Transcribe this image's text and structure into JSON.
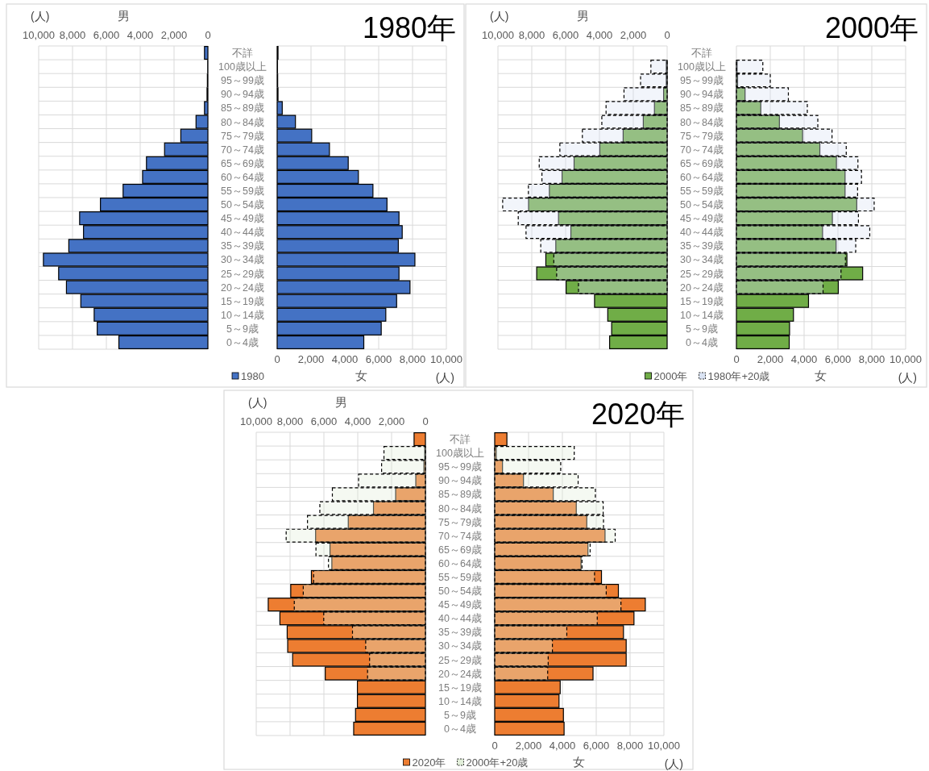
{
  "chart_data": [
    {
      "type": "bar",
      "orientation": "horizontal",
      "xlabel": "男",
      "annotations": [
        "(人)"
      ],
      "grid": true,
      "categories": [
        "不詳",
        "100歳以上",
        "95～99歳",
        "90～94歳",
        "85～89歳",
        "80～84歳",
        "75～79歳",
        "70～74歳",
        "65～69歳",
        "60～64歳",
        "55～59歳",
        "50～54歳",
        "45～49歳",
        "40～44歳",
        "35～39歳",
        "30～34歳",
        "25～29歳",
        "20～24歳",
        "15～19歳",
        "10～14歳",
        "5～9歳",
        "0～4歳"
      ],
      "xlim": [
        10000,
        0
      ],
      "xticks": [
        {
          "value": 10000,
          "label": "10,000"
        },
        {
          "value": 8000,
          "label": "8,000"
        },
        {
          "value": 6000,
          "label": "6,000"
        },
        {
          "value": 4000,
          "label": "4,000"
        },
        {
          "value": 2000,
          "label": "2,000"
        },
        {
          "value": 0,
          "label": "0"
        }
      ],
      "series": [
        {
          "color": "#4472c4",
          "values": [
            200,
            10,
            30,
            50,
            200,
            700,
            1600,
            2560,
            3630,
            3860,
            5010,
            6350,
            7580,
            7350,
            8220,
            9720,
            8820,
            8360,
            7510,
            6720,
            6540,
            5260
          ]
        }
      ]
    },
    {
      "type": "bar",
      "orientation": "horizontal",
      "title": "1980年",
      "xlabel": "女",
      "annotations": [
        "(人)"
      ],
      "grid": true,
      "legend": "bottom",
      "tick_labels": "x",
      "categories": [
        null,
        null,
        null,
        null,
        null,
        null,
        null,
        null,
        null,
        null,
        null,
        null,
        null,
        null,
        null,
        null,
        null,
        null,
        null,
        null,
        null,
        null
      ],
      "xlim": [
        0,
        10000
      ],
      "xticks": [
        {
          "value": 0,
          "label": "0"
        },
        {
          "value": 2000,
          "label": "2,000"
        },
        {
          "value": 4000,
          "label": "4,000"
        },
        {
          "value": 6000,
          "label": "6,000"
        },
        {
          "value": 8000,
          "label": "8,000"
        },
        {
          "value": 10000,
          "label": "10,000"
        }
      ],
      "series": [
        {
          "name": "1980",
          "color": "#4472c4",
          "values": [
            50,
            20,
            30,
            50,
            300,
            1080,
            2040,
            3090,
            4200,
            4800,
            5660,
            6490,
            7200,
            7390,
            7160,
            8140,
            7200,
            7850,
            7060,
            6420,
            6150,
            5120
          ]
        }
      ]
    },
    {
      "type": "bar",
      "orientation": "horizontal",
      "xlabel": "男",
      "annotations": [
        "(人)"
      ],
      "grid": true,
      "categories": [
        "不詳",
        "100歳以上",
        "95～99歳",
        "90～94歳",
        "85～89歳",
        "80～84歳",
        "75～79歳",
        "70～74歳",
        "65～69歳",
        "60～64歳",
        "55～59歳",
        "50～54歳",
        "45～49歳",
        "40～44歳",
        "35～39歳",
        "30～34歳",
        "25～29歳",
        "20～24歳",
        "15～19歳",
        "10～14歳",
        "5～9歳",
        "0～4歳"
      ],
      "xlim": [
        10000,
        0
      ],
      "xticks": [
        {
          "value": 10000,
          "label": "10,000"
        },
        {
          "value": 8000,
          "label": "8,000"
        },
        {
          "value": 6000,
          "label": "6,000"
        },
        {
          "value": 4000,
          "label": "4,000"
        },
        {
          "value": 2000,
          "label": "2,000"
        },
        {
          "value": 0,
          "label": "0"
        }
      ],
      "series": [
        {
          "color": "#70ad47",
          "values": [
            null,
            50,
            50,
            210,
            750,
            1410,
            2600,
            3980,
            5500,
            6210,
            6960,
            8190,
            6420,
            5690,
            6580,
            7170,
            7710,
            5970,
            4290,
            3510,
            3280,
            3400
          ]
        },
        {
          "color": "#dae3f3",
          "line_style": "dashed",
          "values": [
            null,
            960,
            1570,
            2550,
            3610,
            3860,
            5010,
            6340,
            7560,
            7400,
            8200,
            9720,
            8800,
            8340,
            7470,
            6700,
            6530,
            5240,
            null,
            null,
            null,
            null
          ]
        }
      ]
    },
    {
      "type": "bar",
      "orientation": "horizontal",
      "title": "2000年",
      "xlabel": "女",
      "annotations": [
        "(人)"
      ],
      "grid": true,
      "legend": "bottom",
      "tick_labels": "x",
      "categories": [
        null,
        null,
        null,
        null,
        null,
        null,
        null,
        null,
        null,
        null,
        null,
        null,
        null,
        null,
        null,
        null,
        null,
        null,
        null,
        null,
        null,
        null
      ],
      "xlim": [
        0,
        10000
      ],
      "xticks": [
        {
          "value": 0,
          "label": "0"
        },
        {
          "value": 2000,
          "label": "2,000"
        },
        {
          "value": 4000,
          "label": "4,000"
        },
        {
          "value": 6000,
          "label": "6,000"
        },
        {
          "value": 8000,
          "label": "8,000"
        },
        {
          "value": 10000,
          "label": "10,000"
        }
      ],
      "series": [
        {
          "name": "2000年",
          "color": "#70ad47",
          "values": [
            null,
            40,
            70,
            510,
            1440,
            2540,
            3910,
            4930,
            5910,
            6420,
            6420,
            7110,
            5670,
            5090,
            5890,
            6530,
            7460,
            6020,
            4260,
            3370,
            3140,
            3120
          ]
        },
        {
          "name": "1980年+20歳",
          "color": "#dae3f3",
          "line_style": "dashed",
          "values": [
            null,
            1560,
            2000,
            3070,
            4190,
            4810,
            5650,
            6490,
            7180,
            7390,
            7160,
            8140,
            7210,
            7880,
            7050,
            6440,
            6180,
            5120,
            null,
            null,
            null,
            null
          ]
        }
      ]
    },
    {
      "type": "bar",
      "orientation": "horizontal",
      "xlabel": "男",
      "annotations": [
        "(人)"
      ],
      "grid": true,
      "categories": [
        "不詳",
        "100歳以上",
        "95～99歳",
        "90～94歳",
        "85～89歳",
        "80～84歳",
        "75～79歳",
        "70～74歳",
        "65～69歳",
        "60～64歳",
        "55～59歳",
        "50～54歳",
        "45～49歳",
        "40～44歳",
        "35～39歳",
        "30～34歳",
        "25～29歳",
        "20～24歳",
        "15～19歳",
        "10～14歳",
        "5～9歳",
        "0～4歳"
      ],
      "xlim": [
        10000,
        0
      ],
      "xticks": [
        {
          "value": 10000,
          "label": "10,000"
        },
        {
          "value": 8000,
          "label": "8,000"
        },
        {
          "value": 6000,
          "label": "6,000"
        },
        {
          "value": 4000,
          "label": "4,000"
        },
        {
          "value": 2000,
          "label": "2,000"
        },
        {
          "value": 0,
          "label": "0"
        }
      ],
      "series": [
        {
          "color": "#ed7d31",
          "values": [
            670,
            40,
            90,
            570,
            1760,
            3070,
            4560,
            6490,
            5640,
            5530,
            6740,
            7960,
            9290,
            8600,
            8170,
            8140,
            7850,
            5920,
            4020,
            4020,
            4130,
            4240
          ]
        },
        {
          "color": "#e2efda",
          "line_style": "dashed",
          "values": [
            null,
            2450,
            2590,
            3950,
            5500,
            6240,
            6970,
            8230,
            6470,
            5730,
            6610,
            7220,
            7750,
            6010,
            4310,
            3530,
            3300,
            3420,
            null,
            null,
            null,
            null
          ]
        }
      ]
    },
    {
      "type": "bar",
      "orientation": "horizontal",
      "title": "2020年",
      "xlabel": "女",
      "annotations": [
        "(人)"
      ],
      "grid": true,
      "legend": "bottom",
      "tick_labels": "x",
      "categories": [
        null,
        null,
        null,
        null,
        null,
        null,
        null,
        null,
        null,
        null,
        null,
        null,
        null,
        null,
        null,
        null,
        null,
        null,
        null,
        null,
        null,
        null
      ],
      "xlim": [
        0,
        10000
      ],
      "xticks": [
        {
          "value": 0,
          "label": "0"
        },
        {
          "value": 2000,
          "label": "2,000"
        },
        {
          "value": 4000,
          "label": "4,000"
        },
        {
          "value": 6000,
          "label": "6,000"
        },
        {
          "value": 8000,
          "label": "8,000"
        },
        {
          "value": 10000,
          "label": "10,000"
        }
      ],
      "series": [
        {
          "name": "2020年",
          "color": "#ed7d31",
          "values": [
            720,
            90,
            460,
            1700,
            3460,
            4820,
            5440,
            6520,
            5510,
            5100,
            6310,
            7310,
            8900,
            8230,
            7610,
            7770,
            7770,
            5810,
            3870,
            3800,
            4060,
            4100
          ]
        },
        {
          "name": "2000年+20歳",
          "color": "#e2efda",
          "line_style": "dashed",
          "values": [
            null,
            4700,
            3900,
            4930,
            5950,
            6410,
            6430,
            7120,
            5640,
            5160,
            5900,
            6590,
            7460,
            6060,
            4260,
            3410,
            3160,
            3130,
            null,
            null,
            null,
            null
          ]
        }
      ]
    }
  ]
}
